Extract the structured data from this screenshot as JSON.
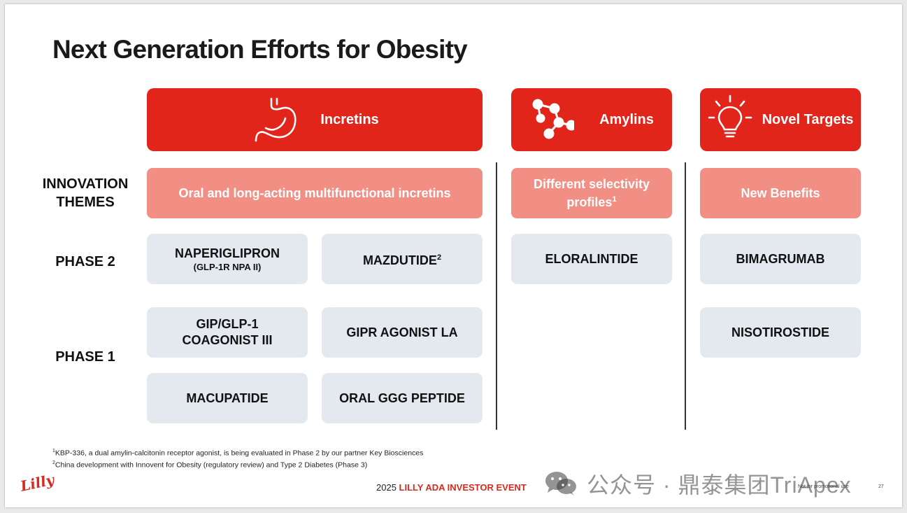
{
  "title": "Next Generation Efforts for Obesity",
  "categories": {
    "incretins": {
      "label": "Incretins",
      "icon": "stomach-icon"
    },
    "amylins": {
      "label": "Amylins",
      "icon": "molecule-icon"
    },
    "novel": {
      "label": "Novel Targets",
      "icon": "lightbulb-icon"
    }
  },
  "row_labels": {
    "innovation_line1": "INNOVATION",
    "innovation_line2": "THEMES",
    "phase2": "PHASE 2",
    "phase1": "PHASE 1"
  },
  "themes": {
    "incretins": "Oral and long-acting multifunctional incretins",
    "amylins_line1": "Different selectivity",
    "amylins_line2": "profiles",
    "amylins_sup": "1",
    "novel": "New Benefits"
  },
  "phase2": {
    "naperiglipron": "NAPERIGLIPRON",
    "naperiglipron_sub": "(GLP-1R NPA II)",
    "mazdutide": "MAZDUTIDE",
    "mazdutide_sup": "2",
    "eloralintide": "ELORALINTIDE",
    "bimagrumab": "BIMAGRUMAB"
  },
  "phase1": {
    "gip_line1": "GIP/GLP-1",
    "gip_line2": "COAGONIST III",
    "gipr": "GIPR AGONIST LA",
    "macupatide": "MACUPATIDE",
    "oral_ggg": "ORAL GGG PEPTIDE",
    "nisotirostide": "NISOTIROSTIDE"
  },
  "footnotes": {
    "f1_sup": "1",
    "f1": "KBP-336, a dual amylin-calcitonin receptor agonist, is being evaluated in Phase 2 by our partner Key Biosciences",
    "f2_sup": "2",
    "f2": "China development with Innovent for Obesity (regulatory review) and Type 2 Diabetes (Phase 3)"
  },
  "footer": {
    "year": "2025 ",
    "event": "LILLY ADA INVESTOR EVENT",
    "promo": "Not for promotional use",
    "page": "27",
    "logo": "Lilly"
  },
  "watermark": {
    "icon": "wechat-icon",
    "text": "公众号 · 鼎泰集团TriApex"
  },
  "colors": {
    "header_red": "#e1251b",
    "theme_salmon": "#f28f84",
    "cell_gray": "#e3e9ef"
  }
}
